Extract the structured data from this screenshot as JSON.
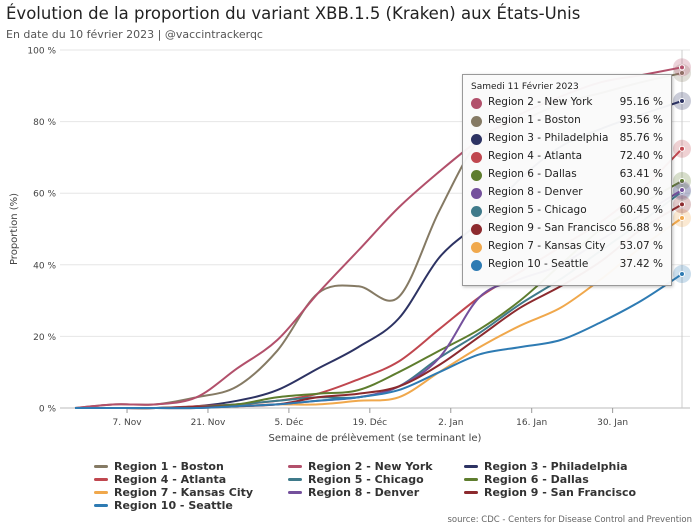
{
  "title": "Évolution de la proportion du variant XBB.1.5 (Kraken) aux États-Unis",
  "subtitle": "En date du 10 février 2023 | @vaccintrackerqc",
  "source": "source: CDC - Centers for Disease Control and Prevention",
  "chart_data": {
    "type": "line",
    "xlabel": "Semaine de prélèvement (se terminant le)",
    "ylabel": "Proportion (%)",
    "ylim": [
      0,
      100
    ],
    "yticks": [
      "0 %",
      "20 %",
      "40 %",
      "60 %",
      "80 %",
      "100 %"
    ],
    "xticks": [
      "7. Nov",
      "21. Nov",
      "5. Déc",
      "19. Déc",
      "2. Jan",
      "16. Jan",
      "30. Jan"
    ],
    "x": [
      "2022-10-29",
      "2022-11-05",
      "2022-11-12",
      "2022-11-19",
      "2022-11-26",
      "2022-12-03",
      "2022-12-10",
      "2022-12-17",
      "2022-12-24",
      "2022-12-31",
      "2023-01-07",
      "2023-01-14",
      "2023-01-21",
      "2023-01-28",
      "2023-02-04",
      "2023-02-11"
    ],
    "grid": true,
    "legend_position": "bottom",
    "series": [
      {
        "name": "Region 1 - Boston",
        "color": "#857a64",
        "values": [
          0,
          1,
          1,
          3,
          6,
          16,
          32,
          34,
          31,
          55,
          75,
          80,
          85,
          88,
          91,
          93.56
        ]
      },
      {
        "name": "Region 2 - New York",
        "color": "#b2506b",
        "values": [
          0,
          1,
          1,
          3,
          11,
          19,
          32,
          44,
          56,
          66,
          75,
          82,
          87,
          91,
          93,
          95.16
        ]
      },
      {
        "name": "Region 3 - Philadelphia",
        "color": "#2d3363",
        "values": [
          0,
          0,
          0,
          0.5,
          2,
          5,
          11,
          17,
          25,
          42,
          52,
          64,
          73,
          78,
          82,
          85.76
        ]
      },
      {
        "name": "Region 4 - Atlanta",
        "color": "#c0474f",
        "values": [
          0,
          0,
          0,
          0.5,
          1,
          2,
          4,
          8,
          13,
          22,
          31,
          38,
          45,
          52,
          61,
          72.4
        ]
      },
      {
        "name": "Region 5 - Chicago",
        "color": "#3f7a8a",
        "values": [
          0,
          0,
          0,
          0.3,
          1,
          2,
          3,
          3,
          6,
          14,
          21,
          29,
          36,
          44,
          52,
          60.45
        ]
      },
      {
        "name": "Region 6 - Dallas",
        "color": "#5e7d2e",
        "values": [
          0,
          0,
          0,
          0.3,
          1,
          3,
          4,
          5,
          10,
          16,
          22,
          30,
          40,
          50,
          57,
          63.41
        ]
      },
      {
        "name": "Region 7 - Kansas City",
        "color": "#f0a84c",
        "values": [
          0,
          0,
          0,
          0,
          0.5,
          1,
          1,
          2,
          3,
          10,
          17,
          23,
          28,
          36,
          45,
          53.07
        ]
      },
      {
        "name": "Region 8 - Denver",
        "color": "#74509c",
        "values": [
          0,
          0,
          0,
          0,
          0.5,
          1,
          2,
          3,
          6,
          14,
          31,
          36,
          40,
          47,
          54,
          60.9
        ]
      },
      {
        "name": "Region 9 - San Francisco",
        "color": "#8c2a2e",
        "values": [
          0,
          0,
          0,
          0.3,
          0.5,
          1,
          3,
          4,
          6,
          12,
          20,
          28,
          34,
          41,
          50,
          56.88
        ]
      },
      {
        "name": "Region 10 - Seattle",
        "color": "#2e7bb3",
        "values": [
          0,
          0,
          0,
          0,
          0.5,
          1,
          2,
          3,
          5,
          10,
          15,
          17,
          19,
          24,
          30,
          37.42
        ]
      }
    ]
  },
  "tooltip": {
    "date": "Samedi 11 Février 2023",
    "rows": [
      {
        "name": "Region 2 - New York",
        "value": "95.16 %",
        "color": "#b2506b"
      },
      {
        "name": "Region 1 - Boston",
        "value": "93.56 %",
        "color": "#857a64"
      },
      {
        "name": "Region 3 - Philadelphia",
        "value": "85.76 %",
        "color": "#2d3363"
      },
      {
        "name": "Region 4 - Atlanta",
        "value": "72.40 %",
        "color": "#c0474f"
      },
      {
        "name": "Region 6 - Dallas",
        "value": "63.41 %",
        "color": "#5e7d2e"
      },
      {
        "name": "Region 8 - Denver",
        "value": "60.90 %",
        "color": "#74509c"
      },
      {
        "name": "Region 5 - Chicago",
        "value": "60.45 %",
        "color": "#3f7a8a"
      },
      {
        "name": "Region 9 - San Francisco",
        "value": "56.88 %",
        "color": "#8c2a2e"
      },
      {
        "name": "Region 7 - Kansas City",
        "value": "53.07 %",
        "color": "#f0a84c"
      },
      {
        "name": "Region 10 - Seattle",
        "value": "37.42 %",
        "color": "#2e7bb3"
      }
    ]
  }
}
